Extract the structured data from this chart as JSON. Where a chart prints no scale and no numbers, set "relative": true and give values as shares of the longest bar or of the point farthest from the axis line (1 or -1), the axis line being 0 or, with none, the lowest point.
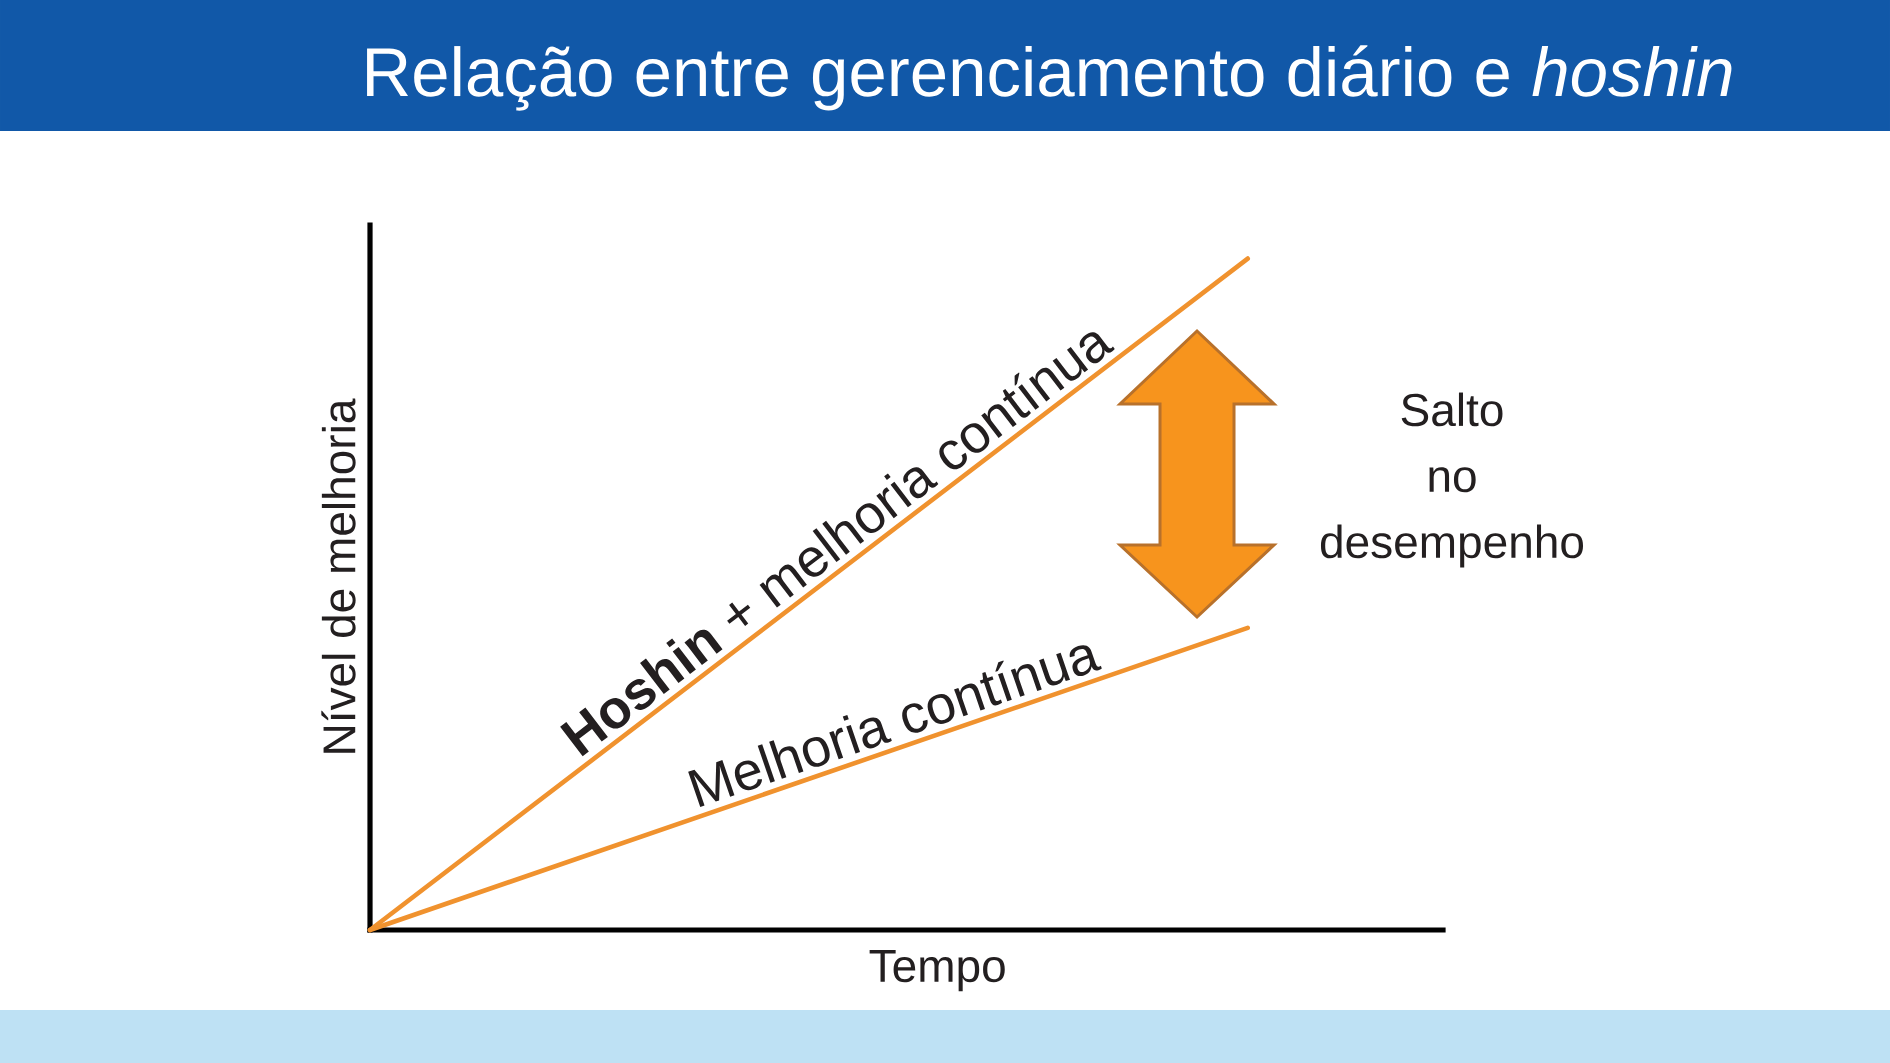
{
  "chart_data": {
    "type": "line",
    "title": "Relação entre gerenciamento diário e *hoshin*",
    "xlabel": "Tempo",
    "ylabel": "Nível de melhoria",
    "categories": [
      null,
      null
    ],
    "relative": true,
    "marker": "none",
    "series": [
      {
        "name": "**Hoshin** + melhoria contínua",
        "color": "#f0922e",
        "values": [
          0,
          1
        ]
      },
      {
        "name": "Melhoria contínua",
        "color": "#f0922e",
        "values": [
          0,
          0.45
        ]
      }
    ],
    "annotations": [
      "Salto no desempenho"
    ]
  }
}
